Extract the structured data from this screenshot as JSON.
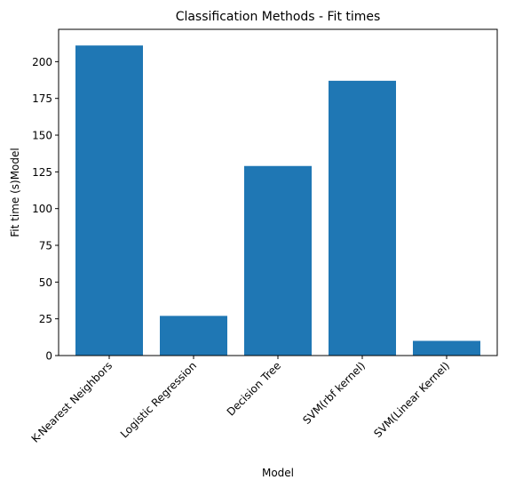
{
  "chart_data": {
    "type": "bar",
    "title": "Classification Methods - Fit times",
    "xlabel": "Model",
    "ylabel": "Fit time (s)Model",
    "categories": [
      "K-Nearest Neighbors",
      "Logistic Regression",
      "Decision Tree",
      "SVM(rbf kernel)",
      "SVM(Linear Kernel)"
    ],
    "values": [
      211,
      27,
      129,
      187,
      10
    ],
    "ylim": [
      0,
      222
    ],
    "yticks": [
      0,
      25,
      50,
      75,
      100,
      125,
      150,
      175,
      200
    ],
    "bar_color": "#1f77b4",
    "grid": false
  }
}
